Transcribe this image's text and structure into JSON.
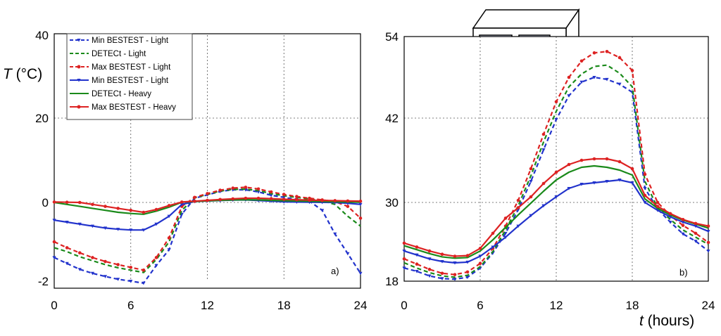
{
  "chart_data": [
    {
      "type": "line",
      "panel_label": "a)",
      "ylabel_italic": "T",
      "ylabel_rest": " (°C)",
      "xlabel_italic": "",
      "xlabel_rest": "",
      "xlim": [
        0,
        24
      ],
      "ylim": [
        -2,
        40
      ],
      "x_ticks": [
        "0",
        "6",
        "12",
        "18",
        "24"
      ],
      "y_ticks": [
        "-2",
        "0",
        "20",
        "40"
      ],
      "grid": true,
      "legend": "top-left",
      "series": [
        {
          "name": "Min BESTEST - Light",
          "color": "#2233cc",
          "dash": true,
          "marker": "triangle",
          "x": [
            0,
            1,
            2,
            3,
            4,
            5,
            6,
            7,
            8,
            9,
            10,
            11,
            12,
            13,
            14,
            15,
            16,
            17,
            18,
            19,
            20,
            21,
            22,
            23,
            24
          ],
          "y": [
            -1.4,
            -1.55,
            -1.7,
            -1.8,
            -1.88,
            -1.95,
            -2.0,
            -2.05,
            -1.6,
            -1.2,
            -0.3,
            1.0,
            1.8,
            2.6,
            3.0,
            3.0,
            2.5,
            1.7,
            1.2,
            0.7,
            0.3,
            -0.2,
            -0.8,
            -1.3,
            -1.8
          ]
        },
        {
          "name": "DETECt - Light",
          "color": "#1a8a1a",
          "dash": true,
          "marker": "none",
          "x": [
            0,
            1,
            2,
            3,
            4,
            5,
            6,
            7,
            8,
            9,
            10,
            11,
            12,
            13,
            14,
            15,
            16,
            17,
            18,
            19,
            20,
            21,
            22,
            23,
            24
          ],
          "y": [
            -1.15,
            -1.25,
            -1.38,
            -1.48,
            -1.58,
            -1.66,
            -1.72,
            -1.78,
            -1.45,
            -1.0,
            -0.2,
            1.1,
            1.9,
            2.7,
            3.1,
            3.15,
            2.8,
            2.1,
            1.6,
            1.2,
            0.8,
            0.4,
            -0.05,
            -0.35,
            -0.6
          ]
        },
        {
          "name": "Max BESTEST - Light",
          "color": "#dd2222",
          "dash": true,
          "marker": "dot",
          "x": [
            0,
            1,
            2,
            3,
            4,
            5,
            6,
            7,
            8,
            9,
            10,
            11,
            12,
            13,
            14,
            15,
            16,
            17,
            18,
            19,
            20,
            21,
            22,
            23,
            24
          ],
          "y": [
            -1.0,
            -1.15,
            -1.28,
            -1.4,
            -1.5,
            -1.58,
            -1.65,
            -1.72,
            -1.4,
            -0.9,
            -0.1,
            1.2,
            2.1,
            2.9,
            3.4,
            3.6,
            3.2,
            2.5,
            1.9,
            1.4,
            1.0,
            0.6,
            0.2,
            -0.1,
            -0.4
          ]
        },
        {
          "name": "Min BESTEST - Light",
          "color": "#2233cc",
          "dash": false,
          "marker": "triangle",
          "x": [
            0,
            1,
            2,
            3,
            4,
            5,
            6,
            7,
            8,
            9,
            10,
            11,
            12,
            13,
            14,
            15,
            16,
            17,
            18,
            19,
            20,
            21,
            22,
            23,
            24
          ],
          "y": [
            -0.45,
            -0.5,
            -0.55,
            -0.6,
            -0.65,
            -0.68,
            -0.7,
            -0.7,
            -0.55,
            -0.35,
            -0.05,
            0.2,
            0.35,
            0.45,
            0.55,
            0.6,
            0.45,
            0.3,
            0.15,
            0.1,
            0.05,
            0.02,
            0.0,
            -0.02,
            -0.05
          ]
        },
        {
          "name": "DETECt - Heavy",
          "color": "#1a8a1a",
          "dash": false,
          "marker": "none",
          "x": [
            0,
            1,
            2,
            3,
            4,
            5,
            6,
            7,
            8,
            9,
            10,
            11,
            12,
            13,
            14,
            15,
            16,
            17,
            18,
            19,
            20,
            21,
            22,
            23,
            24
          ],
          "y": [
            0.0,
            -0.05,
            -0.1,
            -0.15,
            -0.2,
            -0.25,
            -0.28,
            -0.3,
            -0.22,
            -0.12,
            0.05,
            0.22,
            0.38,
            0.5,
            0.6,
            0.65,
            0.6,
            0.5,
            0.42,
            0.35,
            0.28,
            0.22,
            0.16,
            0.1,
            0.05
          ]
        },
        {
          "name": "Max BESTEST - Heavy",
          "color": "#dd2222",
          "dash": false,
          "marker": "dot",
          "x": [
            0,
            1,
            2,
            3,
            4,
            5,
            6,
            7,
            8,
            9,
            10,
            11,
            12,
            13,
            14,
            15,
            16,
            17,
            18,
            19,
            20,
            21,
            22,
            23,
            24
          ],
          "y": [
            0.1,
            0.05,
            0.0,
            -0.05,
            -0.1,
            -0.15,
            -0.2,
            -0.25,
            -0.18,
            -0.08,
            0.1,
            0.3,
            0.5,
            0.7,
            0.85,
            1.0,
            1.0,
            0.9,
            0.75,
            0.65,
            0.55,
            0.48,
            0.42,
            0.35,
            0.3
          ]
        }
      ]
    },
    {
      "type": "line",
      "panel_label": "b)",
      "ylabel_italic": "",
      "ylabel_rest": "",
      "xlabel_italic": "t",
      "xlabel_rest": " (hours)",
      "xlim": [
        0,
        24
      ],
      "ylim": [
        18,
        54
      ],
      "x_ticks": [
        "0",
        "6",
        "12",
        "18",
        "24"
      ],
      "y_ticks": [
        "18",
        "30",
        "42",
        "54"
      ],
      "grid": true,
      "legend": "none",
      "series": [
        {
          "name": "Min BESTEST - Light",
          "color": "#2233cc",
          "dash": true,
          "marker": "triangle",
          "x": [
            0,
            1,
            2,
            3,
            4,
            5,
            6,
            7,
            8,
            9,
            10,
            11,
            12,
            13,
            14,
            15,
            16,
            17,
            18,
            19,
            20,
            21,
            22,
            23,
            24
          ],
          "y": [
            20.0,
            19.5,
            18.8,
            18.4,
            18.3,
            18.6,
            20.0,
            22.3,
            25.3,
            28.9,
            33.0,
            37.5,
            41.8,
            45.3,
            47.3,
            48.0,
            47.7,
            47.0,
            45.8,
            32.0,
            29.0,
            27.0,
            25.2,
            24.1,
            22.6
          ]
        },
        {
          "name": "DETECt - Light",
          "color": "#1a8a1a",
          "dash": true,
          "marker": "none",
          "x": [
            0,
            1,
            2,
            3,
            4,
            5,
            6,
            7,
            8,
            9,
            10,
            11,
            12,
            13,
            14,
            15,
            16,
            17,
            18,
            19,
            20,
            21,
            22,
            23,
            24
          ],
          "y": [
            20.8,
            20.0,
            19.3,
            18.8,
            18.6,
            18.9,
            20.2,
            22.5,
            25.8,
            29.5,
            33.8,
            38.6,
            43.0,
            46.6,
            48.5,
            49.6,
            49.8,
            48.6,
            46.6,
            33.0,
            29.2,
            27.4,
            25.8,
            24.7,
            23.6
          ]
        },
        {
          "name": "Max BESTEST - Light",
          "color": "#dd2222",
          "dash": true,
          "marker": "dot",
          "x": [
            0,
            1,
            2,
            3,
            4,
            5,
            6,
            7,
            8,
            9,
            10,
            11,
            12,
            13,
            14,
            15,
            16,
            17,
            18,
            19,
            20,
            21,
            22,
            23,
            24
          ],
          "y": [
            21.4,
            20.6,
            19.8,
            19.2,
            19.0,
            19.4,
            20.7,
            23.0,
            26.4,
            30.3,
            34.8,
            39.7,
            44.4,
            48.0,
            50.4,
            51.6,
            51.8,
            50.9,
            49.0,
            34.0,
            30.0,
            28.0,
            26.5,
            25.3,
            23.9
          ]
        },
        {
          "name": "Min BESTEST - Light",
          "color": "#2233cc",
          "dash": false,
          "marker": "triangle",
          "x": [
            0,
            1,
            2,
            3,
            4,
            5,
            6,
            7,
            8,
            9,
            10,
            11,
            12,
            13,
            14,
            15,
            16,
            17,
            18,
            19,
            20,
            21,
            22,
            23,
            24
          ],
          "y": [
            22.6,
            22.0,
            21.4,
            21.0,
            20.8,
            20.9,
            21.8,
            23.2,
            24.7,
            26.4,
            28.0,
            29.5,
            30.8,
            32.0,
            32.6,
            32.8,
            33.0,
            33.2,
            32.8,
            30.0,
            28.8,
            27.8,
            27.0,
            26.4,
            25.6
          ]
        },
        {
          "name": "DETECt - Heavy",
          "color": "#1a8a1a",
          "dash": false,
          "marker": "none",
          "x": [
            0,
            1,
            2,
            3,
            4,
            5,
            6,
            7,
            8,
            9,
            10,
            11,
            12,
            13,
            14,
            15,
            16,
            17,
            18,
            19,
            20,
            21,
            22,
            23,
            24
          ],
          "y": [
            23.4,
            22.8,
            22.2,
            21.7,
            21.5,
            21.6,
            22.6,
            24.3,
            26.2,
            28.1,
            29.9,
            31.6,
            33.2,
            34.3,
            35.0,
            35.2,
            35.0,
            34.6,
            33.9,
            30.5,
            29.1,
            28.1,
            27.3,
            26.7,
            26.1
          ]
        },
        {
          "name": "Max BESTEST - Heavy",
          "color": "#dd2222",
          "dash": false,
          "marker": "dot",
          "x": [
            0,
            1,
            2,
            3,
            4,
            5,
            6,
            7,
            8,
            9,
            10,
            11,
            12,
            13,
            14,
            15,
            16,
            17,
            18,
            19,
            20,
            21,
            22,
            23,
            24
          ],
          "y": [
            23.8,
            23.2,
            22.6,
            22.1,
            21.8,
            21.9,
            23.0,
            25.3,
            27.6,
            29.2,
            30.8,
            32.7,
            34.3,
            35.4,
            36.0,
            36.2,
            36.2,
            35.8,
            34.8,
            31.0,
            29.4,
            28.3,
            27.4,
            26.8,
            26.4
          ]
        }
      ]
    }
  ]
}
